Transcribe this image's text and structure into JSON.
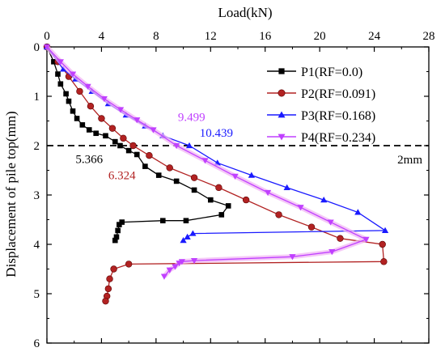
{
  "chart_data": {
    "type": "line",
    "title": "",
    "xlabel": "Load(kN)",
    "ylabel": "Displacement of pile top(mm)",
    "xlim": [
      0,
      28
    ],
    "ylim": [
      0,
      6
    ],
    "x_axis_position": "top",
    "y_axis_inverted": true,
    "x_ticks": [
      0,
      4,
      8,
      12,
      16,
      20,
      24,
      28
    ],
    "y_ticks": [
      0,
      1,
      2,
      3,
      4,
      5,
      6
    ],
    "grid": false,
    "legend_position": "top-right",
    "reference_line": {
      "y": 2,
      "style": "dashed",
      "label": "2mm",
      "color": "#000000"
    },
    "series": [
      {
        "name": "P1(RF=0.0)",
        "color": "#000000",
        "marker": "square",
        "points": [
          [
            0,
            0
          ],
          [
            0.5,
            0.3
          ],
          [
            0.8,
            0.55
          ],
          [
            1.0,
            0.75
          ],
          [
            1.4,
            0.95
          ],
          [
            1.6,
            1.1
          ],
          [
            1.9,
            1.3
          ],
          [
            2.2,
            1.45
          ],
          [
            2.6,
            1.58
          ],
          [
            3.1,
            1.68
          ],
          [
            3.6,
            1.75
          ],
          [
            4.3,
            1.8
          ],
          [
            5.0,
            1.92
          ],
          [
            5.366,
            2.0
          ],
          [
            6.0,
            2.1
          ],
          [
            6.6,
            2.18
          ],
          [
            7.2,
            2.42
          ],
          [
            8.2,
            2.6
          ],
          [
            9.5,
            2.72
          ],
          [
            10.8,
            2.9
          ],
          [
            12.0,
            3.1
          ],
          [
            13.3,
            3.22
          ],
          [
            12.8,
            3.4
          ],
          [
            10.2,
            3.52
          ],
          [
            8.5,
            3.52
          ],
          [
            5.5,
            3.55
          ],
          [
            5.3,
            3.6
          ],
          [
            5.2,
            3.72
          ],
          [
            5.1,
            3.85
          ],
          [
            5.0,
            3.92
          ]
        ]
      },
      {
        "name": "P2(RF=0.091)",
        "color": "#b22222",
        "marker": "circle",
        "points": [
          [
            0,
            0
          ],
          [
            0.8,
            0.3
          ],
          [
            1.6,
            0.6
          ],
          [
            2.4,
            0.9
          ],
          [
            3.2,
            1.2
          ],
          [
            4.0,
            1.45
          ],
          [
            4.8,
            1.65
          ],
          [
            5.6,
            1.85
          ],
          [
            6.324,
            2.0
          ],
          [
            7.5,
            2.2
          ],
          [
            9.0,
            2.45
          ],
          [
            10.8,
            2.65
          ],
          [
            12.6,
            2.85
          ],
          [
            14.6,
            3.1
          ],
          [
            17.0,
            3.4
          ],
          [
            19.4,
            3.65
          ],
          [
            21.5,
            3.88
          ],
          [
            24.6,
            4.0
          ],
          [
            24.7,
            4.35
          ],
          [
            6.0,
            4.4
          ],
          [
            4.9,
            4.5
          ],
          [
            4.6,
            4.7
          ],
          [
            4.5,
            4.9
          ],
          [
            4.4,
            5.05
          ],
          [
            4.3,
            5.15
          ]
        ]
      },
      {
        "name": "P3(RF=0.168)",
        "color": "#1a1aff",
        "marker": "triangle-up",
        "points": [
          [
            0,
            0
          ],
          [
            1.2,
            0.45
          ],
          [
            2.1,
            0.65
          ],
          [
            3.3,
            0.9
          ],
          [
            4.5,
            1.15
          ],
          [
            5.8,
            1.38
          ],
          [
            7.2,
            1.6
          ],
          [
            8.5,
            1.8
          ],
          [
            10.439,
            2.0
          ],
          [
            12.5,
            2.35
          ],
          [
            15.0,
            2.6
          ],
          [
            17.6,
            2.85
          ],
          [
            20.3,
            3.1
          ],
          [
            22.8,
            3.35
          ],
          [
            24.8,
            3.72
          ],
          [
            10.7,
            3.78
          ],
          [
            10.3,
            3.85
          ],
          [
            10.0,
            3.92
          ]
        ]
      },
      {
        "name": "P4(RF=0.234)",
        "color": "#c040ff",
        "marker": "triangle-down",
        "points": [
          [
            0,
            0
          ],
          [
            1.0,
            0.3
          ],
          [
            1.9,
            0.55
          ],
          [
            3.0,
            0.8
          ],
          [
            4.2,
            1.05
          ],
          [
            5.4,
            1.27
          ],
          [
            6.6,
            1.48
          ],
          [
            7.8,
            1.68
          ],
          [
            9.499,
            2.0
          ],
          [
            11.6,
            2.3
          ],
          [
            13.8,
            2.62
          ],
          [
            16.2,
            2.95
          ],
          [
            18.6,
            3.25
          ],
          [
            20.8,
            3.55
          ],
          [
            23.4,
            3.9
          ],
          [
            20.9,
            4.15
          ],
          [
            18.0,
            4.25
          ],
          [
            10.8,
            4.33
          ],
          [
            9.9,
            4.35
          ],
          [
            9.7,
            4.38
          ],
          [
            9.4,
            4.45
          ],
          [
            9.0,
            4.52
          ],
          [
            8.6,
            4.65
          ]
        ]
      }
    ],
    "annotations": [
      {
        "text": "9.499",
        "x": 9.6,
        "y": 1.5,
        "color": "#c040ff"
      },
      {
        "text": "10.439",
        "x": 11.2,
        "y": 1.82,
        "color": "#1a1aff"
      },
      {
        "text": "5.366",
        "x": 2.1,
        "y": 2.35,
        "color": "#000000"
      },
      {
        "text": "6.324",
        "x": 4.5,
        "y": 2.68,
        "color": "#b22222"
      }
    ]
  }
}
